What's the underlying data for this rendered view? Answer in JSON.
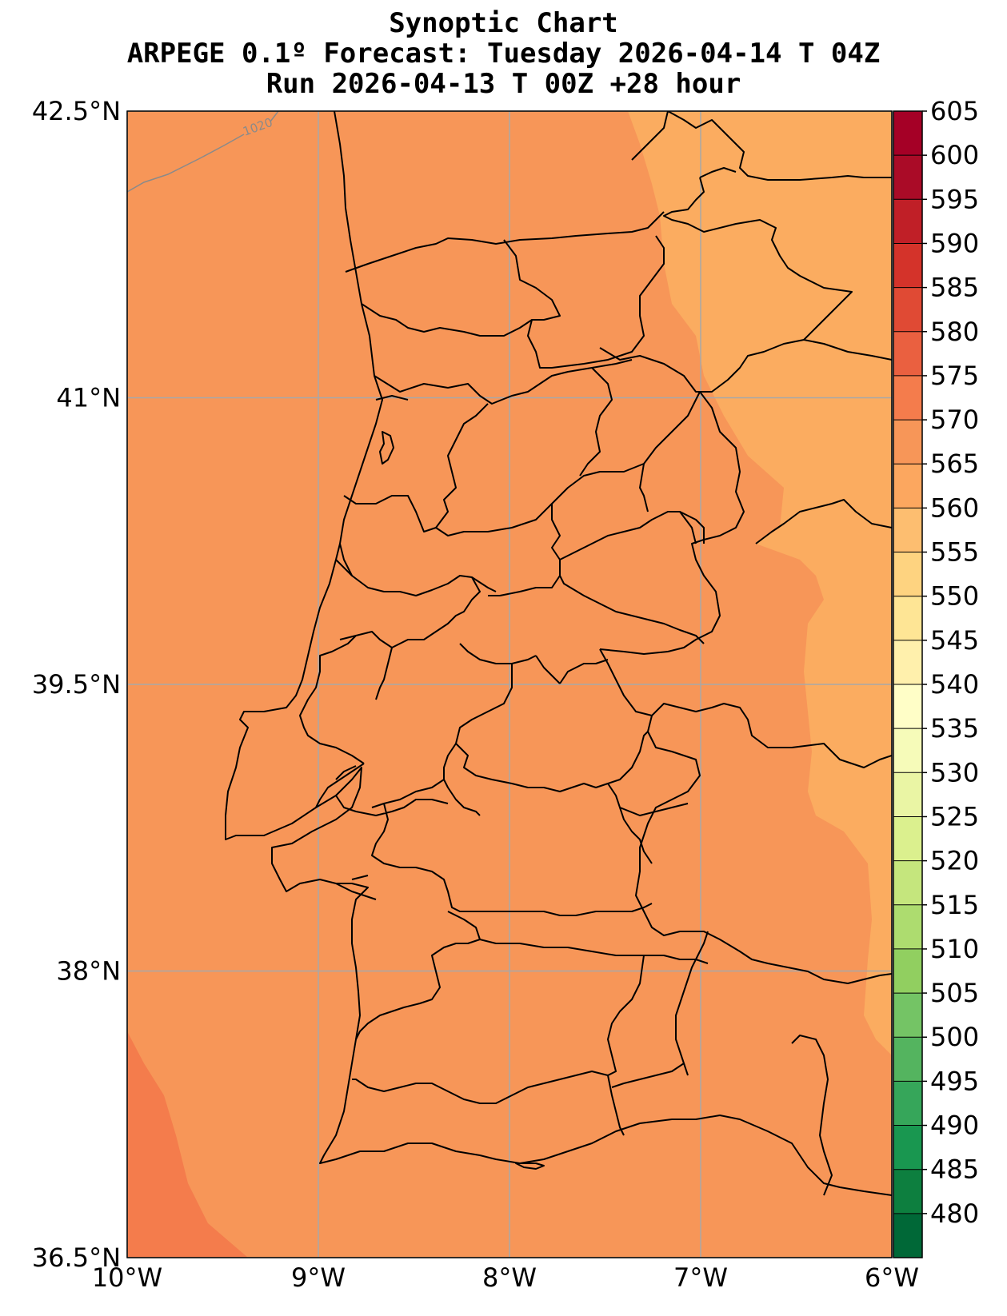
{
  "title": {
    "line1": "Synoptic Chart",
    "line2": "ARPEGE 0.1º Forecast: Tuesday 2026-04-14 T 04Z",
    "line3": "Run 2026-04-13 T 00Z +28 hour"
  },
  "map": {
    "lon_range": [
      -10,
      -6
    ],
    "lat_range": [
      36.5,
      42.5
    ],
    "lon_ticks": [
      {
        "value": -10,
        "label": "10°W"
      },
      {
        "value": -9,
        "label": "9°W"
      },
      {
        "value": -8,
        "label": "8°W"
      },
      {
        "value": -7,
        "label": "7°W"
      },
      {
        "value": -6,
        "label": "6°W"
      }
    ],
    "lat_ticks": [
      {
        "value": 42.5,
        "label": "42.5°N"
      },
      {
        "value": 41,
        "label": "41°N"
      },
      {
        "value": 39.5,
        "label": "39.5°N"
      },
      {
        "value": 38,
        "label": "38°N"
      },
      {
        "value": 36.5,
        "label": "36.5°N"
      }
    ],
    "gridlines": true,
    "isobar_label": "1020",
    "field_colors": {
      "base": "#f79658",
      "lighter": "#fbac60",
      "darker": "#f47c4c"
    }
  },
  "colorbar": {
    "levels": [
      480,
      485,
      490,
      495,
      500,
      505,
      510,
      515,
      520,
      525,
      530,
      535,
      540,
      545,
      550,
      555,
      560,
      565,
      570,
      575,
      580,
      585,
      590,
      595,
      600,
      605
    ],
    "colors": [
      "#006837",
      "#0d7f3f",
      "#199750",
      "#36a65a",
      "#54b45f",
      "#74c465",
      "#91cf60",
      "#addc6f",
      "#c5e67d",
      "#dbf08e",
      "#eaf5a4",
      "#f6fbb9",
      "#fffec7",
      "#fff0ac",
      "#fee595",
      "#fed380",
      "#fdbe70",
      "#fca75f",
      "#f79658",
      "#f47c4c",
      "#ea6040",
      "#e04a34",
      "#d4332a",
      "#c01f27",
      "#aa0b27",
      "#a50026"
    ],
    "unit": ""
  }
}
